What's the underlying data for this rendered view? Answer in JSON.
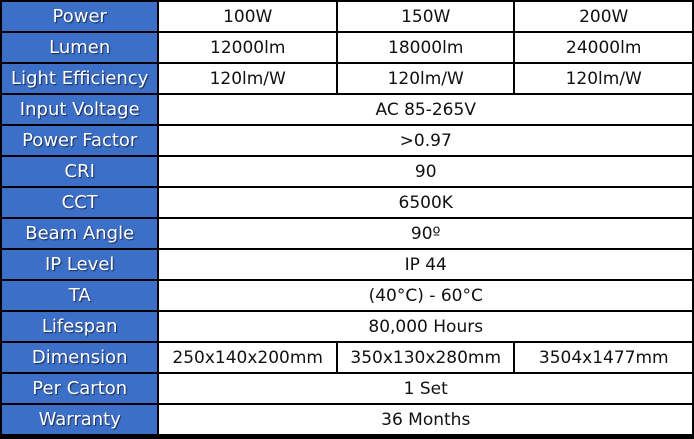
{
  "table": {
    "rows": [
      [
        "Power",
        "100W",
        "150W",
        "200W"
      ],
      [
        "Lumen",
        "12000lm",
        "18000lm",
        "24000lm"
      ],
      [
        "Light Efficiency",
        "120lm/W",
        "120lm/W",
        "120lm/W"
      ],
      [
        "Input Voltage",
        "AC 85-265V"
      ],
      [
        "Power Factor",
        ">0.97"
      ],
      [
        "CRI",
        "90"
      ],
      [
        "CCT",
        "6500K"
      ],
      [
        "Beam Angle",
        "90º"
      ],
      [
        "IP Level",
        "IP 44"
      ],
      [
        "TA",
        "(40°C) - 60°C"
      ],
      [
        "Lifespan",
        "80,000 Hours"
      ],
      [
        "Dimension",
        "250x140x200mm",
        "350x130x280mm",
        "3504x1477mm"
      ],
      [
        "Per Carton",
        "1 Set"
      ],
      [
        "Warranty",
        "36 Months"
      ]
    ]
  }
}
